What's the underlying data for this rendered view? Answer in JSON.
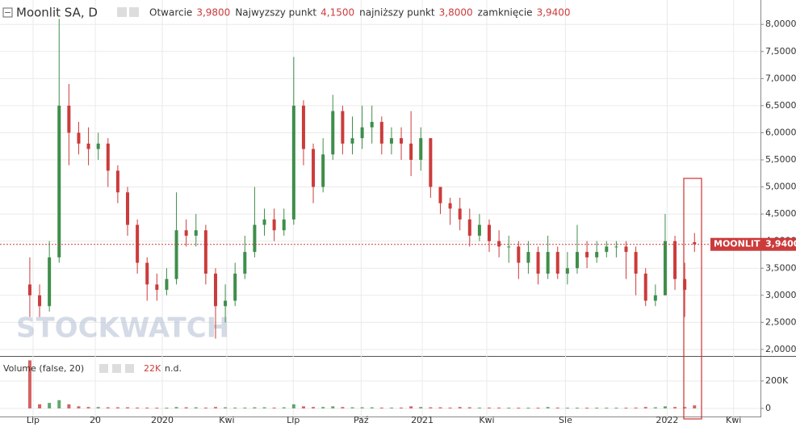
{
  "chart_data": {
    "type": "candlestick",
    "title": "Moonlit SA, D",
    "ohlc_legend": [
      {
        "label": "Otwarcie",
        "value": "3,9800"
      },
      {
        "label": "Najwyzszy punkt",
        "value": "4,1500"
      },
      {
        "label": "najniższy punkt",
        "value": "3,8000"
      },
      {
        "label": "zamknięcie",
        "value": "3,9400"
      }
    ],
    "watermark": "STOCKWATCH",
    "up_color": "#3e8e4a",
    "down_color": "#cc3b3b",
    "grid": true,
    "xlim": [
      -6.1,
      149.5
    ],
    "xticks": [
      {
        "value": 0.66,
        "label": "Lip"
      },
      {
        "value": 13.4,
        "label": "20"
      },
      {
        "value": 27.1,
        "label": "2020"
      },
      {
        "value": 40.3,
        "label": "Kwi"
      },
      {
        "value": 53.9,
        "label": "Lip"
      },
      {
        "value": 67.8,
        "label": "Paź"
      },
      {
        "value": 80.3,
        "label": "2021"
      },
      {
        "value": 93.5,
        "label": "Kwi"
      },
      {
        "value": 109.6,
        "label": "Sie"
      },
      {
        "value": 130.4,
        "label": "2022"
      },
      {
        "value": 144,
        "label": "Kwi"
      }
    ],
    "ylim": [
      1.88,
      8.45
    ],
    "yticks": [
      {
        "value": 2,
        "label": "2,0000"
      },
      {
        "value": 2.5,
        "label": "2,5000"
      },
      {
        "value": 3,
        "label": "3,0000"
      },
      {
        "value": 3.5,
        "label": "3,5000"
      },
      {
        "value": 4,
        "label": "4,0000"
      },
      {
        "value": 4.5,
        "label": "4,5000"
      },
      {
        "value": 5,
        "label": "5,0000"
      },
      {
        "value": 5.5,
        "label": "5,5000"
      },
      {
        "value": 6,
        "label": "6,0000"
      },
      {
        "value": 6.5,
        "label": "6,5000"
      },
      {
        "value": 7,
        "label": "7,0000"
      },
      {
        "value": 7.5,
        "label": "7,5000"
      },
      {
        "value": 8,
        "label": "8,0000"
      }
    ],
    "x": [
      0,
      2,
      4,
      6,
      8,
      10,
      12,
      14,
      16,
      18,
      20,
      22,
      24,
      26,
      28,
      30,
      32,
      34,
      36,
      38,
      40,
      42,
      44,
      46,
      48,
      50,
      52,
      54,
      56,
      58,
      60,
      62,
      64,
      66,
      68,
      70,
      72,
      74,
      76,
      78,
      80,
      82,
      84,
      86,
      88,
      90,
      92,
      94,
      96,
      98,
      100,
      102,
      104,
      106,
      108,
      110,
      112,
      114,
      116,
      118,
      120,
      122,
      124,
      126,
      128,
      130,
      132,
      134,
      136
    ],
    "open": [
      3.2,
      3.0,
      2.8,
      3.7,
      6.5,
      6.0,
      5.8,
      5.7,
      5.8,
      5.3,
      4.9,
      4.3,
      3.6,
      3.2,
      3.1,
      3.3,
      4.2,
      4.1,
      4.2,
      3.4,
      2.8,
      2.9,
      3.4,
      3.8,
      4.3,
      4.4,
      4.2,
      4.4,
      6.5,
      5.7,
      5.0,
      5.6,
      6.4,
      5.8,
      5.9,
      6.1,
      6.2,
      5.8,
      5.9,
      5.8,
      5.5,
      5.9,
      5.0,
      4.7,
      4.6,
      4.4,
      4.1,
      4.3,
      4.0,
      3.9,
      3.9,
      3.6,
      3.8,
      3.4,
      3.8,
      3.4,
      3.5,
      3.8,
      3.7,
      3.8,
      3.9,
      3.9,
      3.8,
      3.4,
      2.9,
      3.0,
      4.0,
      3.3,
      3.98
    ],
    "high": [
      3.7,
      3.2,
      4.0,
      8.1,
      6.9,
      6.2,
      6.1,
      6.0,
      5.9,
      5.4,
      5.0,
      4.4,
      3.7,
      3.4,
      3.5,
      4.9,
      4.4,
      4.5,
      4.3,
      3.5,
      3.2,
      3.6,
      4.1,
      5.0,
      4.6,
      4.6,
      4.6,
      7.4,
      6.6,
      5.8,
      5.9,
      6.7,
      6.5,
      6.3,
      6.5,
      6.5,
      6.3,
      6.1,
      6.1,
      6.4,
      6.1,
      5.9,
      5.0,
      4.8,
      4.8,
      4.6,
      4.5,
      4.4,
      4.2,
      4.1,
      4.0,
      4.0,
      3.9,
      4.1,
      3.9,
      3.8,
      4.3,
      4.0,
      4.0,
      4.0,
      4.0,
      4.0,
      3.9,
      3.5,
      3.2,
      4.5,
      4.1,
      3.6,
      4.15
    ],
    "low": [
      2.6,
      2.6,
      2.7,
      3.6,
      5.4,
      5.6,
      5.4,
      5.5,
      5.0,
      4.7,
      4.1,
      3.4,
      2.9,
      2.9,
      3.0,
      3.2,
      3.9,
      3.9,
      3.2,
      2.2,
      2.5,
      2.8,
      3.3,
      3.7,
      4.1,
      4.0,
      4.1,
      4.3,
      5.4,
      4.7,
      4.9,
      5.5,
      5.6,
      5.6,
      5.7,
      5.8,
      5.6,
      5.6,
      5.5,
      5.2,
      5.3,
      4.8,
      4.5,
      4.3,
      4.2,
      3.9,
      4.0,
      3.8,
      3.7,
      3.6,
      3.3,
      3.4,
      3.2,
      3.3,
      3.3,
      3.2,
      3.4,
      3.5,
      3.6,
      3.7,
      3.7,
      3.3,
      3.0,
      2.8,
      2.8,
      3.0,
      3.1,
      2.6,
      3.8
    ],
    "close": [
      3.0,
      2.8,
      3.7,
      6.5,
      6.0,
      5.8,
      5.7,
      5.8,
      5.3,
      4.9,
      4.3,
      3.6,
      3.2,
      3.1,
      3.3,
      4.2,
      4.1,
      4.2,
      3.4,
      2.8,
      2.9,
      3.4,
      3.8,
      4.3,
      4.4,
      4.2,
      4.4,
      6.5,
      5.7,
      5.0,
      5.6,
      6.4,
      5.8,
      5.9,
      6.1,
      6.2,
      5.8,
      5.9,
      5.8,
      5.5,
      5.9,
      5.0,
      4.7,
      4.6,
      4.4,
      4.1,
      4.3,
      4.0,
      3.9,
      3.9,
      3.6,
      3.8,
      3.4,
      3.8,
      3.4,
      3.5,
      3.8,
      3.7,
      3.8,
      3.9,
      3.9,
      3.8,
      3.4,
      2.9,
      3.0,
      4.0,
      3.3,
      3.1,
      3.94
    ],
    "last_price": {
      "name": "MOONLIT",
      "value": 3.94,
      "label": "3,9400",
      "color": "#cc3b3b"
    },
    "volume": {
      "name": "Volume (false, 20)",
      "last_label": "22K",
      "status": "n.d.",
      "ylim": [
        -65000,
        382000
      ],
      "yticks": [
        0,
        {
          "value": 200000,
          "label": "200K"
        }
      ],
      "values": [
        350000,
        30000,
        40000,
        60000,
        30000,
        15000,
        10000,
        10000,
        8000,
        8000,
        8000,
        6000,
        6000,
        5000,
        5000,
        10000,
        8000,
        8000,
        6000,
        10000,
        8000,
        6000,
        6000,
        8000,
        8000,
        6000,
        8000,
        30000,
        15000,
        10000,
        10000,
        15000,
        10000,
        8000,
        8000,
        8000,
        6000,
        6000,
        6000,
        15000,
        10000,
        8000,
        8000,
        6000,
        10000,
        8000,
        6000,
        6000,
        6000,
        5000,
        5000,
        5000,
        5000,
        10000,
        6000,
        5000,
        5000,
        5000,
        5000,
        5000,
        5000,
        5000,
        6000,
        10000,
        8000,
        15000,
        10000,
        10000,
        22000
      ]
    }
  }
}
